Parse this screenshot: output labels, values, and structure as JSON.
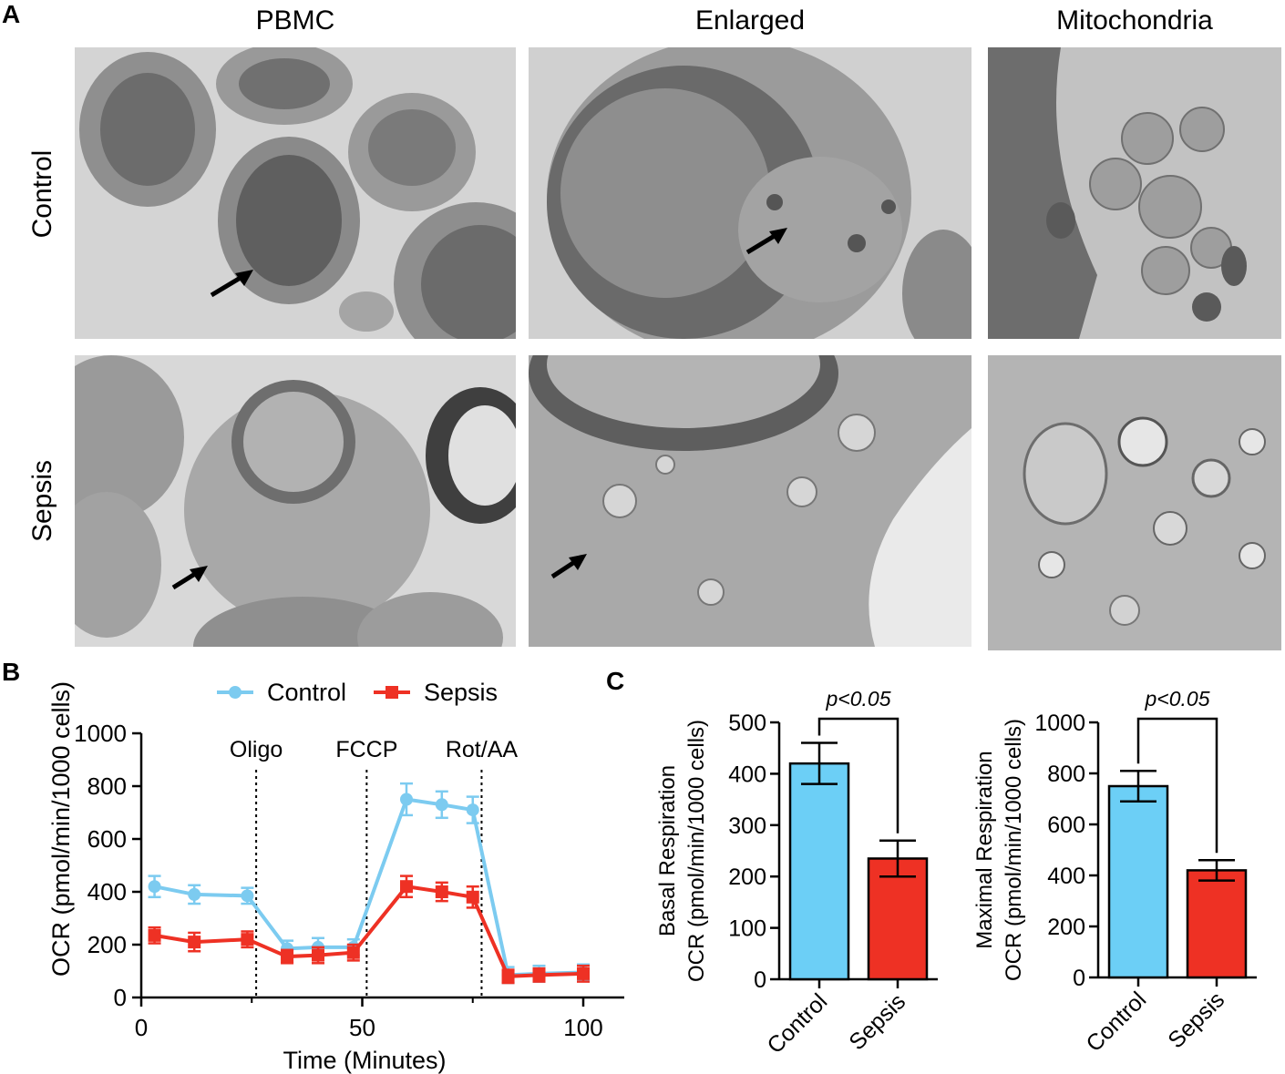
{
  "panel_labels": {
    "a": "A",
    "b": "B",
    "c": "C"
  },
  "em_grid": {
    "columns": [
      "PBMC",
      "Enlarged",
      "Mitochondria"
    ],
    "rows": [
      "Control",
      "Sepsis"
    ]
  },
  "colors": {
    "control": "#6CCFF6",
    "control_line": "#7CCBF0",
    "sepsis": "#EE3124",
    "axis": "#000000"
  },
  "chart_data": [
    {
      "type": "line",
      "panel": "B",
      "xlabel": "Time (Minutes)",
      "ylabel": "OCR (pmol/min/1000 cells)",
      "xlim": [
        0,
        110
      ],
      "ylim": [
        0,
        1000
      ],
      "xticks": [
        0,
        50,
        100
      ],
      "yticks": [
        0,
        200,
        400,
        600,
        800,
        1000
      ],
      "legend": {
        "placement": "top",
        "entries": [
          "Control",
          "Sepsis"
        ]
      },
      "annotations": [
        {
          "label": "Oligo",
          "x": 26
        },
        {
          "label": "FCCP",
          "x": 51
        },
        {
          "label": "Rot/AA",
          "x": 77
        }
      ],
      "x": [
        3,
        12,
        24,
        33,
        40,
        48,
        60,
        68,
        75,
        83,
        90,
        100
      ],
      "series": [
        {
          "name": "Control",
          "values": [
            420,
            390,
            385,
            185,
            190,
            190,
            750,
            730,
            710,
            85,
            90,
            95
          ],
          "errors": [
            40,
            35,
            30,
            30,
            35,
            30,
            60,
            50,
            50,
            30,
            30,
            30
          ]
        },
        {
          "name": "Sepsis",
          "values": [
            235,
            210,
            220,
            155,
            160,
            170,
            420,
            400,
            380,
            80,
            85,
            90
          ],
          "errors": [
            30,
            35,
            30,
            25,
            30,
            30,
            40,
            35,
            40,
            25,
            25,
            30
          ]
        }
      ]
    },
    {
      "type": "bar",
      "panel": "C",
      "categories": [
        "Control",
        "Sepsis"
      ],
      "values": [
        420,
        235
      ],
      "errors": [
        40,
        35
      ],
      "ylabel_line1": "Basal Respiration",
      "ylabel_line2": "OCR (pmol/min/1000 cells)",
      "ylim": [
        0,
        500
      ],
      "yticks": [
        0,
        100,
        200,
        300,
        400,
        500
      ],
      "significance": "p<0.05"
    },
    {
      "type": "bar",
      "panel": "C",
      "categories": [
        "Control",
        "Sepsis"
      ],
      "values": [
        750,
        420
      ],
      "errors": [
        60,
        40
      ],
      "ylabel_line1": "Maximal Respiration",
      "ylabel_line2": "OCR (pmol/min/1000 cells)",
      "ylim": [
        0,
        1000
      ],
      "yticks": [
        0,
        200,
        400,
        600,
        800,
        1000
      ],
      "significance": "p<0.05"
    }
  ]
}
